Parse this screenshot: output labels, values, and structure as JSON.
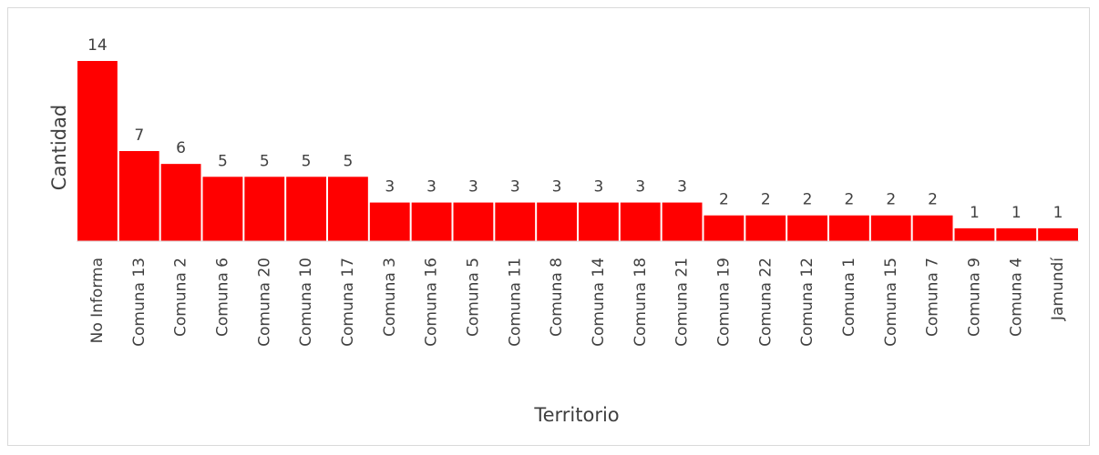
{
  "chart_data": {
    "type": "bar",
    "xlabel": "Territorio",
    "ylabel": "Cantidad",
    "categories": [
      "No Informa",
      "Comuna 13",
      "Comuna 2",
      "Comuna 6",
      "Comuna 20",
      "Comuna 10",
      "Comuna 17",
      "Comuna 3",
      "Comuna 16",
      "Comuna 5",
      "Comuna 11",
      "Comuna 8",
      "Comuna 14",
      "Comuna 18",
      "Comuna 21",
      "Comuna 19",
      "Comuna 22",
      "Comuna 12",
      "Comuna 1",
      "Comuna 15",
      "Comuna 7",
      "Comuna 9",
      "Comuna 4",
      "Jamundí"
    ],
    "values": [
      14,
      7,
      6,
      5,
      5,
      5,
      5,
      3,
      3,
      3,
      3,
      3,
      3,
      3,
      3,
      2,
      2,
      2,
      2,
      2,
      2,
      1,
      1,
      1
    ],
    "ylim": [
      0,
      14
    ],
    "grid": false,
    "legend": "none",
    "data_labels": true,
    "bar_color": "#ff0000",
    "axis_color": "#d9d9d9"
  }
}
